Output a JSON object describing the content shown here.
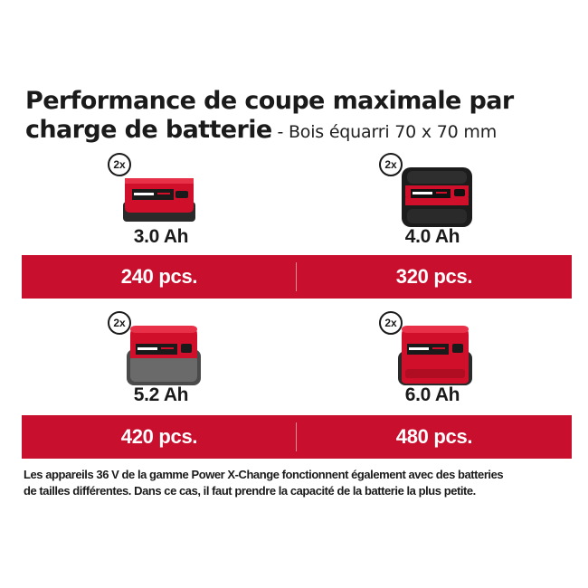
{
  "title": {
    "line1": "Performance de coupe maximale par",
    "line2": "charge de batterie",
    "subtitle": " - Bois équarri 70 x 70 mm"
  },
  "batteries": [
    {
      "quantity": "2x",
      "capacity": "3.0 Ah",
      "result": "240 pcs.",
      "icon": "battery-2-5ah-style-icon"
    },
    {
      "quantity": "2x",
      "capacity": "4.0 Ah",
      "result": "320 pcs.",
      "icon": "battery-4ah-style-icon"
    },
    {
      "quantity": "2x",
      "capacity": "5.2 Ah",
      "result": "420 pcs.",
      "icon": "battery-5-2ah-style-icon"
    },
    {
      "quantity": "2x",
      "capacity": "6.0 Ah",
      "result": "480 pcs.",
      "icon": "battery-6ah-style-icon"
    }
  ],
  "note": {
    "line1": "Les appareils 36 V de la gamme Power X-Change fonctionnent également avec des batteries",
    "line2": "de tailles différentes. Dans ce cas, il faut prendre la capacité de la batterie la plus petite."
  },
  "colors": {
    "band": "#c8102e",
    "battery_red": "#d0102a",
    "battery_dark": "#2a2a2a",
    "text": "#1a1a1a"
  }
}
